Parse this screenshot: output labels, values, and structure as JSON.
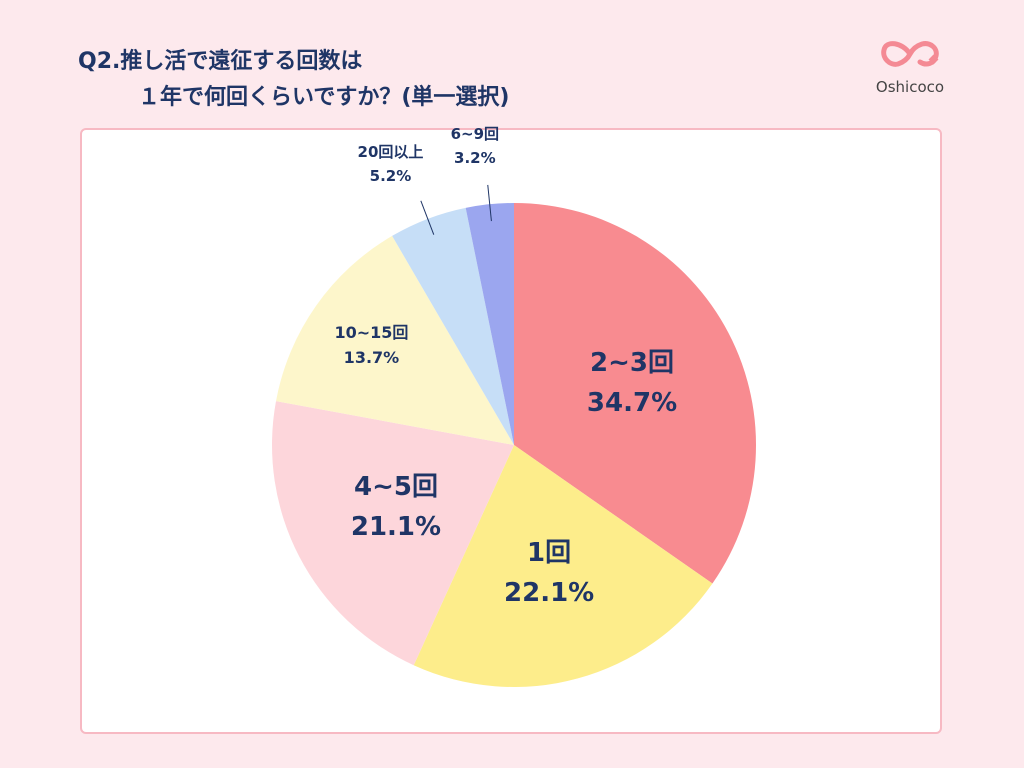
{
  "title": {
    "line1": "Q2.推し活で遠征する回数は",
    "line2": "１年で何回くらいですか？(単一選択)"
  },
  "logo": {
    "text": "Oshicoco",
    "color": "#f48a94"
  },
  "chart_data": {
    "type": "pie",
    "title": "Q2.推し活で遠征する回数は １年で何回くらいですか？(単一選択)",
    "start": "top, clockwise",
    "slices": [
      {
        "label": "2~3回",
        "value": 34.7,
        "value_label": "34.7%",
        "color": "#f88b90"
      },
      {
        "label": "1回",
        "value": 22.1,
        "value_label": "22.1%",
        "color": "#fded8b"
      },
      {
        "label": "4~5回",
        "value": 21.1,
        "value_label": "21.1%",
        "color": "#fdd6db"
      },
      {
        "label": "10~15回",
        "value": 13.7,
        "value_label": "13.7%",
        "color": "#fdf6cb"
      },
      {
        "label": "20回以上",
        "value": 5.2,
        "value_label": "5.2%",
        "color": "#c6def7"
      },
      {
        "label": "6~9回",
        "value": 3.2,
        "value_label": "3.2%",
        "color": "#9ba6ef"
      }
    ]
  }
}
